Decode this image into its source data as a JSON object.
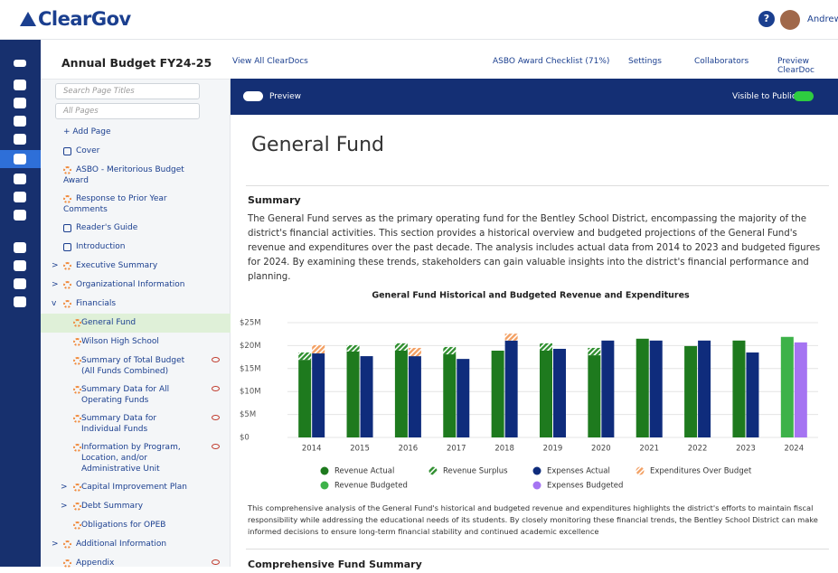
{
  "header": {
    "logo": "ClearGov",
    "user": "Andrew"
  },
  "toolbar": {
    "doc_title": "Annual Budget FY24-25",
    "view_all": "View All ClearDocs",
    "links": [
      "ASBO Award Checklist (71%)",
      "Settings",
      "Collaborators",
      "Preview ClearDoc"
    ]
  },
  "sidebar": {
    "search_placeholder": "Search Page Titles",
    "filter": "All Pages",
    "add_page": "+ Add Page",
    "items": [
      "Cover",
      "ASBO - Meritorious Budget Award",
      "Response to Prior Year Comments",
      "Reader's Guide",
      "Introduction",
      "Executive Summary",
      "Organizational Information",
      "Financials",
      "General Fund",
      "Wilson High School",
      "Summary of Total Budget (All Funds Combined)",
      "Summary Data for All Operating Funds",
      "Summary Data for Individual Funds",
      "Information by Program, Location, and/or Administrative Unit",
      "Capital Improvement Plan",
      "Debt Summary",
      "Obligations for OPEB",
      "Additional Information",
      "Appendix"
    ]
  },
  "preview_bar": {
    "preview": "Preview",
    "visible": "Visible to Public"
  },
  "content": {
    "title": "General Fund",
    "summary_heading": "Summary",
    "summary_text": "The General Fund serves as the primary operating fund for the Bentley School District, encompassing the majority of the district's financial activities. This section provides a historical overview and budgeted projections of the General Fund's revenue and expenditures over the past decade. The analysis includes actual data from 2014 to 2023 and budgeted figures for 2024. By examining these trends, stakeholders can gain valuable insights into the district's financial performance and planning.",
    "footer_text": "This comprehensive analysis of the General Fund's historical and budgeted revenue and expenditures highlights the district's efforts to maintain fiscal responsibility while addressing the educational needs of its students. By closely monitoring these financial trends, the Bentley School District can make informed decisions to ensure long-term financial stability and continued academic excellence",
    "next_heading": "Comprehensive Fund Summary"
  },
  "chart_data": {
    "type": "stacked_grouped_bar",
    "title": "General Fund Historical and Budgeted Revenue and Expenditures",
    "categories": [
      "2014",
      "2015",
      "2016",
      "2017",
      "2018",
      "2019",
      "2020",
      "2021",
      "2022",
      "2023",
      "2024"
    ],
    "ylim": [
      0,
      25
    ],
    "yticks": [
      {
        "value": 0,
        "label": "$0"
      },
      {
        "value": 5,
        "label": "$5M"
      },
      {
        "value": 10,
        "label": "$10M"
      },
      {
        "value": 15,
        "label": "$15M"
      },
      {
        "value": 20,
        "label": "$20M"
      },
      {
        "value": 25,
        "label": "$25M"
      }
    ],
    "grid": true,
    "series": [
      {
        "name": "Revenue Actual",
        "color": "#1e7a1e",
        "stack": "revenue",
        "values": [
          16.9,
          18.7,
          18.9,
          18.1,
          18.9,
          18.9,
          17.9,
          21.5,
          19.9,
          21.1,
          null
        ]
      },
      {
        "name": "Revenue Surplus",
        "color": "#2f8f2f",
        "stack": "revenue",
        "hatch": true,
        "values": [
          1.6,
          1.4,
          1.6,
          1.6,
          null,
          1.6,
          1.6,
          null,
          null,
          null,
          null
        ]
      },
      {
        "name": "Expenses Actual",
        "color": "#0f2c7c",
        "stack": "expenses",
        "values": [
          18.3,
          17.7,
          17.7,
          17.1,
          21.1,
          19.3,
          21.1,
          21.1,
          21.1,
          18.5,
          null
        ]
      },
      {
        "name": "Expenditures Over Budget",
        "color": "#f3a063",
        "stack": "expenses",
        "hatch": true,
        "values": [
          1.8,
          null,
          1.8,
          null,
          1.5,
          null,
          null,
          null,
          null,
          null,
          null
        ]
      },
      {
        "name": "Revenue Budgeted",
        "color": "#3db249",
        "stack": "revenue",
        "values": [
          null,
          null,
          null,
          null,
          null,
          null,
          null,
          null,
          null,
          null,
          21.9
        ]
      },
      {
        "name": "Expenses Budgeted",
        "color": "#a574f2",
        "stack": "expenses",
        "values": [
          null,
          null,
          null,
          null,
          null,
          null,
          null,
          null,
          null,
          null,
          20.7
        ]
      }
    ]
  }
}
